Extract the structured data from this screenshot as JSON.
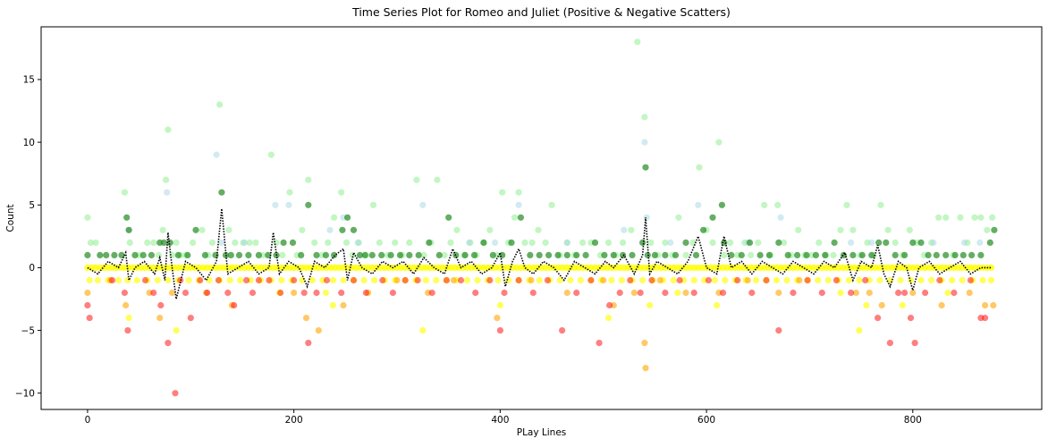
{
  "chart_data": {
    "type": "scatter",
    "title": "Time Series Plot for Romeo and Juliet (Positive & Negative Scatters)",
    "xlabel": "PLay Lines",
    "ylabel": "Count",
    "xlim": [
      -45,
      925
    ],
    "ylim": [
      -11.3,
      19.2
    ],
    "x_ticks": [
      0,
      200,
      400,
      600,
      800
    ],
    "y_ticks": [
      -10,
      -5,
      0,
      5,
      10,
      15
    ],
    "grid": false,
    "legend": "none",
    "series": [
      {
        "color": "#90ee90",
        "opacity": 0.55,
        "x": [
          0,
          3,
          8,
          36,
          41,
          50,
          58,
          64,
          69,
          73,
          76,
          78,
          82,
          86,
          90,
          95,
          102,
          111,
          117,
          121,
          128,
          137,
          143,
          151,
          157,
          163,
          170,
          178,
          183,
          189,
          196,
          203,
          208,
          214,
          220,
          227,
          233,
          239,
          246,
          251,
          257,
          263,
          270,
          277,
          283,
          291,
          298,
          305,
          312,
          319,
          326,
          333,
          339,
          346,
          352,
          358,
          365,
          371,
          377,
          384,
          390,
          397,
          402,
          408,
          414,
          418,
          424,
          431,
          437,
          444,
          450,
          458,
          465,
          472,
          480,
          488,
          497,
          505,
          512,
          519,
          527,
          533,
          540,
          546,
          553,
          560,
          567,
          573,
          580,
          587,
          593,
          600,
          606,
          612,
          617,
          623,
          630,
          637,
          643,
          650,
          656,
          662,
          669,
          675,
          682,
          689,
          695,
          702,
          709,
          716,
          723,
          730,
          736,
          742,
          749,
          756,
          762,
          769,
          776,
          783,
          790,
          797,
          804,
          811,
          818,
          825,
          832,
          839,
          846,
          853,
          860,
          866,
          872,
          877
        ],
        "y": [
          4,
          2,
          2,
          6,
          2,
          1,
          2,
          2,
          1,
          3,
          7,
          11,
          1,
          2,
          1,
          1,
          2,
          3,
          1,
          2,
          13,
          3,
          2,
          2,
          2,
          2,
          1,
          9,
          2,
          1,
          6,
          1,
          3,
          7,
          2,
          1,
          2,
          4,
          6,
          2,
          1,
          2,
          1,
          5,
          2,
          1,
          2,
          1,
          2,
          7,
          1,
          2,
          7,
          1,
          2,
          3,
          1,
          2,
          1,
          2,
          3,
          1,
          6,
          2,
          4,
          6,
          2,
          2,
          3,
          2,
          5,
          1,
          2,
          1,
          2,
          2,
          1,
          2,
          1,
          2,
          3,
          18,
          12,
          2,
          1,
          2,
          1,
          4,
          1,
          2,
          8,
          3,
          2,
          10,
          1,
          2,
          1,
          2,
          1,
          2,
          5,
          1,
          5,
          2,
          1,
          3,
          1,
          1,
          2,
          1,
          1,
          3,
          5,
          3,
          1,
          2,
          1,
          5,
          3,
          2,
          1,
          3,
          2,
          1,
          2,
          4,
          4,
          1,
          4,
          2,
          4,
          4,
          3,
          4
        ]
      },
      {
        "color": "#add8e6",
        "opacity": 0.55,
        "x": [
          40,
          77,
          125,
          130,
          152,
          182,
          195,
          235,
          248,
          262,
          325,
          370,
          395,
          418,
          465,
          520,
          540,
          542,
          565,
          592,
          640,
          672,
          740,
          760,
          820,
          850,
          865
        ],
        "y": [
          3,
          6,
          9,
          2,
          2,
          5,
          5,
          3,
          4,
          2,
          5,
          2,
          2,
          5,
          2,
          3,
          10,
          4,
          2,
          5,
          2,
          4,
          2,
          2,
          2,
          2,
          2
        ]
      },
      {
        "color": "#228b22",
        "opacity": 0.7,
        "x": [
          0,
          12,
          18,
          26,
          33,
          38,
          40,
          46,
          54,
          62,
          70,
          74,
          80,
          88,
          97,
          105,
          114,
          124,
          130,
          134,
          139,
          147,
          156,
          166,
          175,
          183,
          190,
          199,
          207,
          214,
          222,
          231,
          239,
          247,
          252,
          258,
          264,
          269,
          276,
          285,
          294,
          303,
          312,
          321,
          331,
          341,
          350,
          357,
          366,
          375,
          384,
          393,
          402,
          411,
          420,
          429,
          438,
          447,
          456,
          465,
          474,
          483,
          492,
          501,
          510,
          519,
          528,
          538,
          541,
          543,
          550,
          560,
          570,
          580,
          590,
          597,
          606,
          615,
          617,
          624,
          634,
          642,
          652,
          661,
          670,
          679,
          688,
          697,
          706,
          715,
          724,
          733,
          742,
          751,
          760,
          767,
          774,
          783,
          792,
          800,
          808,
          815,
          823,
          832,
          841,
          849,
          857,
          866,
          875,
          879
        ],
        "y": [
          1,
          1,
          1,
          1,
          1,
          4,
          3,
          1,
          1,
          1,
          2,
          2,
          2,
          1,
          1,
          3,
          1,
          1,
          6,
          1,
          1,
          1,
          1,
          1,
          1,
          1,
          2,
          2,
          1,
          5,
          1,
          1,
          1,
          3,
          4,
          3,
          1,
          1,
          1,
          1,
          1,
          1,
          1,
          1,
          2,
          1,
          4,
          1,
          1,
          1,
          2,
          1,
          1,
          2,
          4,
          1,
          1,
          1,
          1,
          1,
          1,
          1,
          2,
          1,
          1,
          1,
          1,
          2,
          8,
          1,
          1,
          1,
          1,
          2,
          1,
          3,
          4,
          5,
          2,
          1,
          1,
          2,
          1,
          1,
          2,
          1,
          1,
          1,
          1,
          1,
          2,
          1,
          1,
          1,
          1,
          2,
          2,
          1,
          1,
          2,
          2,
          1,
          1,
          1,
          1,
          1,
          1,
          1,
          2,
          3
        ]
      },
      {
        "color": "#ffff00",
        "opacity": 0.65,
        "x": [
          2,
          10,
          20,
          30,
          39,
          48,
          58,
          68,
          78,
          88,
          98,
          108,
          118,
          128,
          138,
          148,
          158,
          168,
          178,
          188,
          198,
          208,
          218,
          228,
          238,
          248,
          258,
          268,
          278,
          288,
          298,
          308,
          318,
          328,
          338,
          348,
          358,
          368,
          378,
          388,
          398,
          408,
          418,
          428,
          438,
          448,
          458,
          468,
          478,
          488,
          498,
          508,
          518,
          528,
          538,
          548,
          558,
          568,
          578,
          588,
          598,
          608,
          618,
          628,
          638,
          648,
          658,
          668,
          678,
          688,
          698,
          708,
          718,
          728,
          738,
          748,
          758,
          768,
          778,
          788,
          798,
          808,
          818,
          828,
          838,
          848,
          858,
          868,
          876,
          40,
          86,
          186,
          231,
          238,
          325,
          400,
          505,
          545,
          572,
          610,
          730,
          748,
          755,
          790,
          834
        ],
        "y": [
          -1,
          -1,
          -1,
          -1,
          -1,
          -1,
          -1,
          -1,
          -1,
          -1,
          -1,
          -1,
          -1,
          -1,
          -1,
          -1,
          -1,
          -1,
          -1,
          -1,
          -1,
          -1,
          -1,
          -1,
          -1,
          -1,
          -1,
          -1,
          -1,
          -1,
          -1,
          -1,
          -1,
          -1,
          -1,
          -1,
          -1,
          -1,
          -1,
          -1,
          -1,
          -1,
          -1,
          -1,
          -1,
          -1,
          -1,
          -1,
          -1,
          -1,
          -1,
          -1,
          -1,
          -1,
          -1,
          -1,
          -1,
          -1,
          -1,
          -1,
          -1,
          -1,
          -1,
          -1,
          -1,
          -1,
          -1,
          -1,
          -1,
          -1,
          -1,
          -1,
          -1,
          -1,
          -1,
          -1,
          -1,
          -1,
          -1,
          -1,
          -1,
          -1,
          -1,
          -1,
          -1,
          -1,
          -1,
          -1,
          -1,
          -4,
          -5,
          -2,
          -2,
          -3,
          -5,
          -3,
          -4,
          -3,
          -2,
          -3,
          -2,
          -5,
          -3,
          -3,
          -2
        ]
      },
      {
        "color": "#ffa500",
        "opacity": 0.6,
        "x": [
          0,
          22,
          37,
          60,
          70,
          82,
          115,
          140,
          200,
          212,
          224,
          248,
          272,
          300,
          330,
          355,
          397,
          430,
          465,
          500,
          510,
          530,
          540,
          541,
          555,
          580,
          612,
          640,
          670,
          690,
          745,
          758,
          770,
          800,
          828,
          855,
          870,
          878
        ],
        "y": [
          -2,
          -1,
          -3,
          -2,
          -4,
          -2,
          -2,
          -3,
          -2,
          -4,
          -5,
          -3,
          -2,
          -1,
          -2,
          -1,
          -4,
          -1,
          -2,
          -1,
          -3,
          -2,
          -6,
          -8,
          -1,
          -2,
          -2,
          -1,
          -2,
          -1,
          -2,
          -2,
          -3,
          -2,
          -3,
          -2,
          -3,
          -3
        ]
      },
      {
        "color": "#ff0000",
        "opacity": 0.5,
        "x": [
          0,
          2,
          24,
          36,
          39,
          56,
          64,
          71,
          78,
          85,
          90,
          95,
          100,
          109,
          116,
          127,
          136,
          142,
          154,
          160,
          166,
          176,
          187,
          200,
          210,
          214,
          222,
          232,
          246,
          258,
          270,
          286,
          296,
          308,
          320,
          334,
          348,
          362,
          376,
          390,
          400,
          404,
          418,
          432,
          446,
          460,
          474,
          488,
          496,
          506,
          516,
          526,
          536,
          547,
          560,
          574,
          588,
          602,
          616,
          630,
          644,
          658,
          670,
          684,
          698,
          712,
          726,
          740,
          754,
          766,
          778,
          786,
          792,
          798,
          802,
          812,
          826,
          840,
          856,
          866,
          870
        ],
        "y": [
          -3,
          -4,
          -1,
          -2,
          -5,
          -1,
          -2,
          -3,
          -6,
          -10,
          -1,
          -2,
          -4,
          -1,
          -2,
          -1,
          -2,
          -3,
          -1,
          -2,
          -1,
          -1,
          -2,
          -1,
          -2,
          -6,
          -2,
          -1,
          -2,
          -1,
          -2,
          -1,
          -2,
          -1,
          -1,
          -2,
          -1,
          -1,
          -2,
          -1,
          -5,
          -2,
          -1,
          -2,
          -1,
          -5,
          -2,
          -1,
          -6,
          -3,
          -2,
          -1,
          -2,
          -1,
          -2,
          -1,
          -2,
          -1,
          -2,
          -1,
          -2,
          -1,
          -5,
          -2,
          -1,
          -2,
          -1,
          -2,
          -1,
          -4,
          -6,
          -2,
          -2,
          -4,
          -6,
          -2,
          -1,
          -2,
          -1,
          -4,
          -4
        ]
      }
    ],
    "line": {
      "color": "#000000",
      "style": "dotted",
      "x": [
        0,
        10,
        20,
        30,
        37,
        40,
        46,
        55,
        65,
        70,
        75,
        78,
        82,
        86,
        95,
        105,
        115,
        125,
        130,
        136,
        146,
        156,
        166,
        176,
        180,
        186,
        195,
        205,
        213,
        220,
        230,
        240,
        248,
        252,
        258,
        266,
        276,
        286,
        296,
        306,
        316,
        326,
        336,
        346,
        354,
        362,
        372,
        382,
        392,
        400,
        405,
        412,
        418,
        424,
        432,
        442,
        452,
        462,
        472,
        482,
        492,
        502,
        510,
        520,
        530,
        538,
        541,
        545,
        552,
        562,
        572,
        582,
        592,
        600,
        610,
        617,
        624,
        634,
        644,
        654,
        664,
        674,
        684,
        694,
        704,
        714,
        724,
        734,
        742,
        750,
        760,
        766,
        772,
        778,
        786,
        794,
        800,
        806,
        816,
        826,
        836,
        846,
        856,
        866,
        876
      ],
      "y": [
        0,
        -0.5,
        0.5,
        0,
        1.2,
        -1,
        0,
        0.5,
        -0.5,
        0.8,
        -1,
        2.8,
        0,
        -2.5,
        0.5,
        0,
        -1,
        0.5,
        4.7,
        -0.5,
        0,
        0.5,
        -0.5,
        0,
        2.8,
        -0.5,
        0.5,
        0,
        -1.5,
        0.5,
        0,
        1,
        1.5,
        -1,
        1.2,
        0,
        -0.5,
        0.5,
        0,
        0.5,
        -0.5,
        0.8,
        0,
        -0.5,
        1.5,
        0,
        0.5,
        -0.5,
        0,
        1.2,
        -1.5,
        0.5,
        1.5,
        0,
        -0.5,
        0.5,
        0,
        -1,
        0.5,
        0,
        -0.5,
        0.5,
        0,
        1,
        -0.5,
        1,
        4,
        -0.5,
        0.5,
        0,
        -0.5,
        0.5,
        2.5,
        0,
        -0.5,
        2.5,
        0,
        0.5,
        -0.5,
        0.5,
        0,
        -0.5,
        0.5,
        0,
        -0.5,
        0.5,
        0,
        1.2,
        -1,
        0.5,
        0,
        1.8,
        -0.5,
        -1.5,
        0.5,
        0,
        -1.8,
        0,
        0.5,
        -0.5,
        0,
        0.5,
        -0.5,
        0,
        0
      ]
    }
  }
}
